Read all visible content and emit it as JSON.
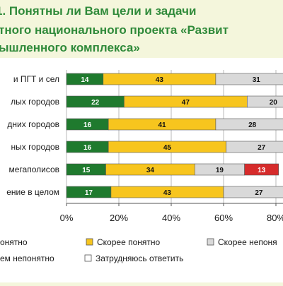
{
  "title_lines": [
    "1. Понятны ли Вам цели и задачи",
    "тного национального проекта «Развит",
    "ышленного комплекса»"
  ],
  "colors": {
    "green": "#1f7a2e",
    "yellow": "#f7c51e",
    "light_gray": "#d9d9d9",
    "red": "#d62b2b",
    "white": "#ffffff",
    "title": "#2f8a3a",
    "title_bg": "#f4f6dc",
    "grid": "#b8b8b8"
  },
  "chart_data": {
    "type": "bar",
    "orientation": "horizontal",
    "stacked": true,
    "categories": [
      "и ПГТ и сел",
      "лых городов",
      "дних городов",
      "ных городов",
      "мегаполисов",
      "ение в целом"
    ],
    "series": [
      {
        "name": "онятно",
        "color": "#1f7a2e",
        "values": [
          14,
          22,
          16,
          16,
          15,
          17
        ]
      },
      {
        "name": "Скорее понятно",
        "color": "#f7c51e",
        "values": [
          43,
          47,
          41,
          45,
          34,
          43
        ]
      },
      {
        "name": "Скорее непоня",
        "color": "#d9d9d9",
        "values": [
          31,
          20,
          28,
          27,
          19,
          27
        ]
      },
      {
        "name": "ем непонятно",
        "color": "#d62b2b",
        "values": [
          null,
          null,
          null,
          null,
          13,
          null
        ]
      },
      {
        "name": "Затрудняюсь ответить",
        "color": "#ffffff",
        "values": [
          null,
          null,
          null,
          null,
          null,
          null
        ]
      }
    ],
    "xlim": [
      0,
      100
    ],
    "ticks": [
      0,
      20,
      40,
      60,
      80
    ],
    "tick_labels": [
      "0%",
      "20%",
      "40%",
      "60%",
      "80%"
    ],
    "grid": true,
    "legend_position": "bottom"
  }
}
